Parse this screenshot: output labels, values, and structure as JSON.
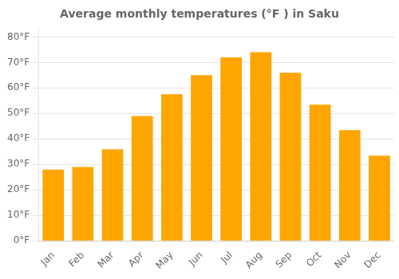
{
  "chart_data": {
    "type": "bar",
    "title": "Average monthly temperatures (°F ) in Saku",
    "categories": [
      "Jan",
      "Feb",
      "Mar",
      "Apr",
      "May",
      "Jun",
      "Jul",
      "Aug",
      "Sep",
      "Oct",
      "Nov",
      "Dec"
    ],
    "values": [
      28,
      29,
      36,
      49,
      57.5,
      65,
      72,
      74,
      66,
      53.5,
      43.5,
      33.5
    ],
    "color": "#FFA500",
    "ylim": [
      0,
      83
    ],
    "yticks": [
      {
        "value": 0,
        "label": "0°F"
      },
      {
        "value": 10,
        "label": "10°F"
      },
      {
        "value": 20,
        "label": "20°F"
      },
      {
        "value": 30,
        "label": "30°F"
      },
      {
        "value": 40,
        "label": "40°F"
      },
      {
        "value": 50,
        "label": "50°F"
      },
      {
        "value": 60,
        "label": "60°F"
      },
      {
        "value": 70,
        "label": "70°F"
      },
      {
        "value": 80,
        "label": "80°F"
      }
    ],
    "grid": true
  }
}
